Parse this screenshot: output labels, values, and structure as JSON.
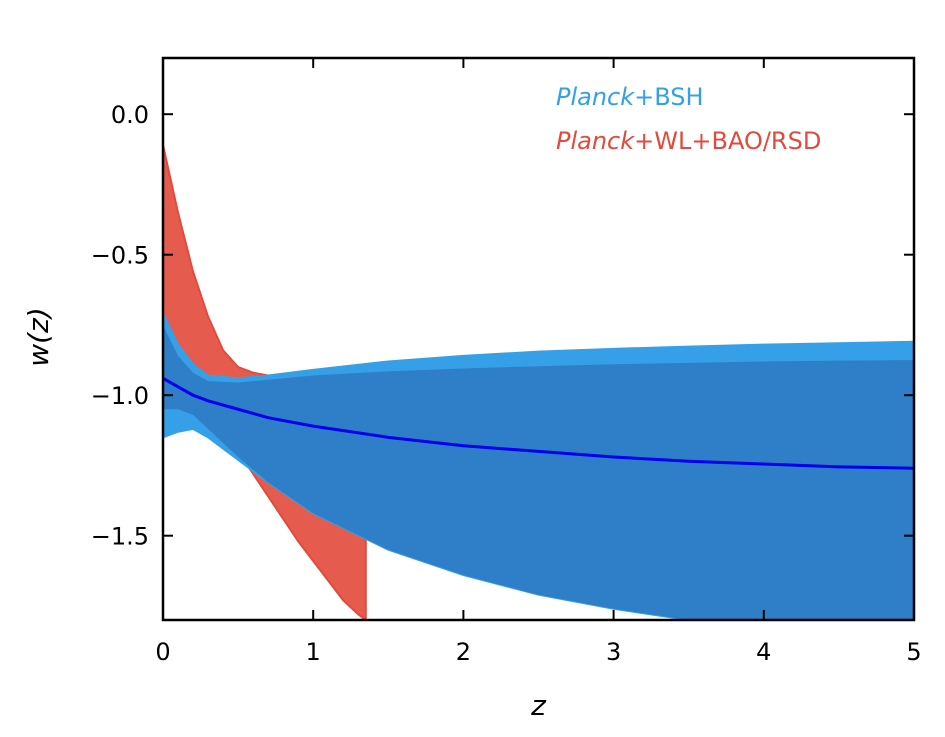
{
  "chart_data": {
    "type": "area",
    "xlabel": "z",
    "ylabel": "w(z)",
    "xlim": [
      0,
      5
    ],
    "ylim": [
      -1.8,
      0.2
    ],
    "x_ticks": [
      "0",
      "1",
      "2",
      "3",
      "4",
      "5"
    ],
    "y_ticks": [
      "0.0",
      "−0.5",
      "−1.0",
      "−1.5"
    ],
    "grid": false,
    "legend_position": "top-right",
    "series": [
      {
        "name": "Planck+WL+BAO/RSD",
        "legend_italic": "Planck",
        "legend_rest": "+WL+BAO/RSD",
        "kind": "band",
        "color": "#e24a3b",
        "x": [
          0,
          0.1,
          0.2,
          0.3,
          0.4,
          0.5,
          0.6,
          0.7,
          0.8,
          0.9,
          1.0,
          1.1,
          1.2,
          1.3,
          1.35
        ],
        "upper": [
          -0.11,
          -0.35,
          -0.56,
          -0.72,
          -0.84,
          -0.9,
          -0.92,
          -0.93,
          -0.93,
          -0.93,
          -0.925,
          -0.92,
          -0.915,
          -0.91,
          -0.905
        ],
        "lower": [
          -1.05,
          -1.04,
          -1.03,
          -1.06,
          -1.12,
          -1.2,
          -1.28,
          -1.36,
          -1.44,
          -1.52,
          -1.59,
          -1.66,
          -1.73,
          -1.78,
          -1.8
        ]
      },
      {
        "name": "Planck+BSH",
        "legend_italic": "Planck",
        "legend_rest": "+BSH",
        "kind": "band",
        "color": "#2e7ec8",
        "color_light": "#35a0e8",
        "x": [
          0,
          0.1,
          0.2,
          0.3,
          0.5,
          0.7,
          1.0,
          1.5,
          2.0,
          2.5,
          3.0,
          3.5,
          4.0,
          4.5,
          5.0
        ],
        "upper_outer": [
          -0.71,
          -0.82,
          -0.89,
          -0.93,
          -0.94,
          -0.93,
          -0.91,
          -0.88,
          -0.86,
          -0.845,
          -0.835,
          -0.827,
          -0.82,
          -0.815,
          -0.81
        ],
        "upper_inner": [
          -0.75,
          -0.86,
          -0.92,
          -0.95,
          -0.955,
          -0.945,
          -0.93,
          -0.915,
          -0.905,
          -0.897,
          -0.89,
          -0.885,
          -0.88,
          -0.877,
          -0.875
        ],
        "lower_inner": [
          -1.05,
          -1.05,
          -1.07,
          -1.12,
          -1.22,
          -1.31,
          -1.42,
          -1.55,
          -1.64,
          -1.71,
          -1.76,
          -1.8,
          -1.8,
          -1.8,
          -1.8
        ],
        "lower_outer": [
          -1.15,
          -1.13,
          -1.12,
          -1.15,
          -1.23,
          -1.31,
          -1.42,
          -1.55,
          -1.64,
          -1.71,
          -1.76,
          -1.8,
          -1.8,
          -1.8,
          -1.8
        ]
      },
      {
        "name": "",
        "kind": "line",
        "color": "#0000ee",
        "x": [
          0,
          0.1,
          0.2,
          0.3,
          0.5,
          0.7,
          1.0,
          1.5,
          2.0,
          2.5,
          3.0,
          3.5,
          4.0,
          4.5,
          5.0
        ],
        "y": [
          -0.94,
          -0.97,
          -1.0,
          -1.02,
          -1.05,
          -1.08,
          -1.11,
          -1.15,
          -1.18,
          -1.2,
          -1.22,
          -1.235,
          -1.245,
          -1.255,
          -1.26
        ]
      }
    ]
  }
}
